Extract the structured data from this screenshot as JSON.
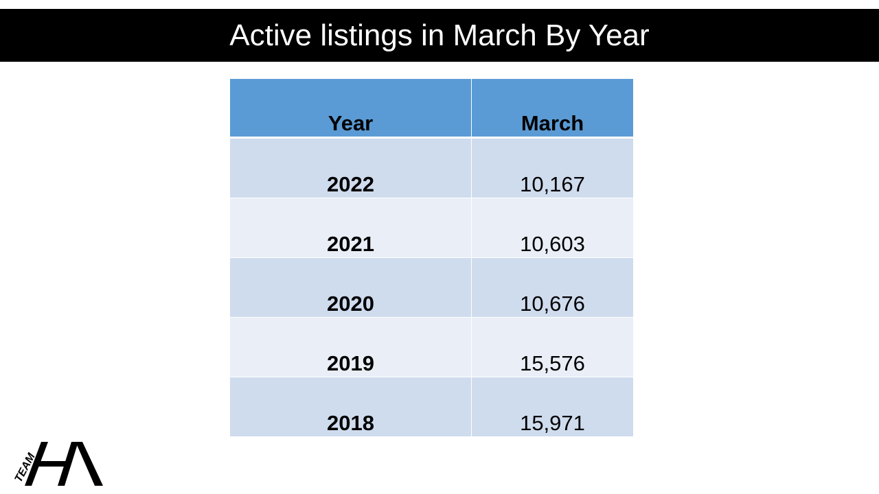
{
  "slide": {
    "title": "Active listings in March By Year"
  },
  "colors": {
    "title_bar": "#000000",
    "title_text": "#ffffff",
    "header_fill": "#5b9bd5",
    "row_dark": "#cfdcee",
    "row_light": "#e9eef7"
  },
  "logo": {
    "text": "TEAM HA",
    "icon": "team-ha-logo"
  },
  "chart_data": {
    "type": "table",
    "title": "Active listings in March By Year",
    "columns": [
      "Year",
      "March"
    ],
    "rows": [
      [
        "2022",
        "10,167"
      ],
      [
        "2021",
        "10,603"
      ],
      [
        "2020",
        "10,676"
      ],
      [
        "2019",
        "15,576"
      ],
      [
        "2018",
        "15,971"
      ]
    ]
  }
}
